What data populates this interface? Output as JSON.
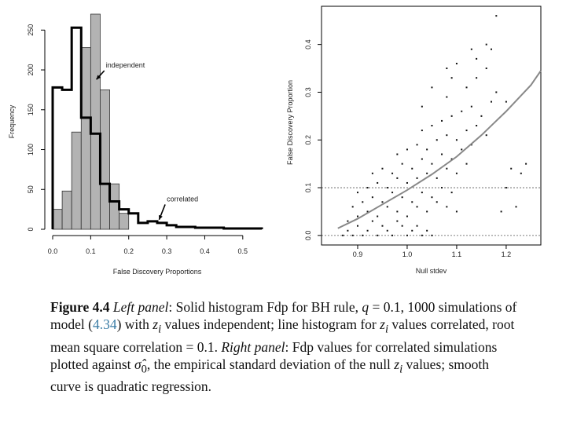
{
  "chart_data": [
    {
      "type": "bar",
      "panel": "left",
      "xlabel": "False Discovery Proportions",
      "ylabel": "Frequency",
      "xlim": [
        0,
        0.55
      ],
      "ylim": [
        0,
        270
      ],
      "xticks": [
        0.0,
        0.1,
        0.2,
        0.3,
        0.4,
        0.5
      ],
      "xtick_labels": [
        "0.0",
        "0.1",
        "0.2",
        "0.3",
        "0.4",
        "0.5"
      ],
      "yticks": [
        0,
        50,
        100,
        150,
        200,
        250
      ],
      "bin_width": 0.025,
      "series": [
        {
          "name": "independent",
          "style": "solid-gray",
          "bin_starts": [
            0.0,
            0.025,
            0.05,
            0.075,
            0.1,
            0.125,
            0.15,
            0.175
          ],
          "values": [
            25,
            48,
            122,
            228,
            270,
            175,
            57,
            20
          ]
        },
        {
          "name": "correlated",
          "style": "thick-outline",
          "bin_starts": [
            0.0,
            0.025,
            0.05,
            0.075,
            0.1,
            0.125,
            0.15,
            0.175,
            0.2,
            0.225,
            0.25,
            0.275,
            0.3,
            0.325,
            0.35,
            0.375,
            0.4,
            0.425,
            0.45,
            0.475,
            0.5,
            0.525
          ],
          "values": [
            178,
            175,
            253,
            140,
            120,
            57,
            35,
            25,
            20,
            8,
            10,
            8,
            5,
            3,
            3,
            2,
            2,
            2,
            1,
            1,
            1,
            1
          ]
        }
      ],
      "annotations": [
        {
          "text": "independent",
          "target_x": 0.115,
          "target_y": 188,
          "text_x": 0.14,
          "text_y": 203
        },
        {
          "text": "correlated",
          "target_x": 0.28,
          "target_y": 12,
          "text_x": 0.3,
          "text_y": 35
        }
      ]
    },
    {
      "type": "scatter",
      "panel": "right",
      "xlabel": "Null stdev",
      "ylabel": "False Discovery Proportion",
      "xlim": [
        0.827,
        1.27
      ],
      "ylim": [
        -0.02,
        0.48
      ],
      "xticks": [
        0.9,
        1.0,
        1.1,
        1.2
      ],
      "xtick_labels": [
        "0.9",
        "1.0",
        "1.1",
        "1.2"
      ],
      "yticks": [
        0.0,
        0.1,
        0.2,
        0.3,
        0.4
      ],
      "ytick_labels": [
        "0.0",
        "0.1",
        "0.2",
        "0.3",
        "0.4"
      ],
      "reference_lines_y": [
        0.0,
        0.1
      ],
      "fit": {
        "label": "quadratic regression",
        "x": [
          0.86,
          0.9,
          0.95,
          1.0,
          1.05,
          1.1,
          1.15,
          1.2,
          1.25,
          1.27
        ],
        "y": [
          0.015,
          0.035,
          0.065,
          0.095,
          0.128,
          0.165,
          0.21,
          0.26,
          0.315,
          0.345
        ]
      },
      "points": [
        [
          0.87,
          0.0
        ],
        [
          0.88,
          0.01
        ],
        [
          0.89,
          0.0
        ],
        [
          0.9,
          0.02
        ],
        [
          0.91,
          0.0
        ],
        [
          0.92,
          0.01
        ],
        [
          0.93,
          0.03
        ],
        [
          0.94,
          0.0
        ],
        [
          0.95,
          0.02
        ],
        [
          0.96,
          0.01
        ],
        [
          0.97,
          0.0
        ],
        [
          0.98,
          0.03
        ],
        [
          0.99,
          0.02
        ],
        [
          1.0,
          0.0
        ],
        [
          1.01,
          0.01
        ],
        [
          1.02,
          0.02
        ],
        [
          1.03,
          0.0
        ],
        [
          1.04,
          0.01
        ],
        [
          1.05,
          0.0
        ],
        [
          0.88,
          0.03
        ],
        [
          0.9,
          0.04
        ],
        [
          0.92,
          0.05
        ],
        [
          0.94,
          0.04
        ],
        [
          0.96,
          0.06
        ],
        [
          0.98,
          0.05
        ],
        [
          1.0,
          0.04
        ],
        [
          1.02,
          0.06
        ],
        [
          1.04,
          0.05
        ],
        [
          1.06,
          0.07
        ],
        [
          1.08,
          0.06
        ],
        [
          1.1,
          0.05
        ],
        [
          0.89,
          0.06
        ],
        [
          0.91,
          0.07
        ],
        [
          0.93,
          0.08
        ],
        [
          0.95,
          0.07
        ],
        [
          0.97,
          0.09
        ],
        [
          0.99,
          0.08
        ],
        [
          1.01,
          0.07
        ],
        [
          1.03,
          0.09
        ],
        [
          1.05,
          0.08
        ],
        [
          1.07,
          0.1
        ],
        [
          1.09,
          0.09
        ],
        [
          0.9,
          0.09
        ],
        [
          0.92,
          0.1
        ],
        [
          0.94,
          0.11
        ],
        [
          0.96,
          0.1
        ],
        [
          0.98,
          0.12
        ],
        [
          1.0,
          0.11
        ],
        [
          1.02,
          0.12
        ],
        [
          1.04,
          0.13
        ],
        [
          1.06,
          0.12
        ],
        [
          1.08,
          0.14
        ],
        [
          1.1,
          0.13
        ],
        [
          1.12,
          0.15
        ],
        [
          0.93,
          0.13
        ],
        [
          0.95,
          0.14
        ],
        [
          0.97,
          0.13
        ],
        [
          0.99,
          0.15
        ],
        [
          1.01,
          0.14
        ],
        [
          1.03,
          0.16
        ],
        [
          1.05,
          0.15
        ],
        [
          1.07,
          0.17
        ],
        [
          1.09,
          0.16
        ],
        [
          1.11,
          0.18
        ],
        [
          1.13,
          0.19
        ],
        [
          0.98,
          0.17
        ],
        [
          1.0,
          0.18
        ],
        [
          1.02,
          0.19
        ],
        [
          1.04,
          0.18
        ],
        [
          1.06,
          0.2
        ],
        [
          1.08,
          0.21
        ],
        [
          1.1,
          0.2
        ],
        [
          1.12,
          0.22
        ],
        [
          1.14,
          0.23
        ],
        [
          1.16,
          0.21
        ],
        [
          1.03,
          0.22
        ],
        [
          1.05,
          0.23
        ],
        [
          1.07,
          0.24
        ],
        [
          1.09,
          0.25
        ],
        [
          1.11,
          0.26
        ],
        [
          1.13,
          0.27
        ],
        [
          1.15,
          0.25
        ],
        [
          1.17,
          0.28
        ],
        [
          1.03,
          0.27
        ],
        [
          1.08,
          0.29
        ],
        [
          1.12,
          0.31
        ],
        [
          1.14,
          0.33
        ],
        [
          1.16,
          0.35
        ],
        [
          1.08,
          0.35
        ],
        [
          1.1,
          0.36
        ],
        [
          1.18,
          0.3
        ],
        [
          1.2,
          0.28
        ],
        [
          1.13,
          0.39
        ],
        [
          1.16,
          0.4
        ],
        [
          1.14,
          0.37
        ],
        [
          1.05,
          0.31
        ],
        [
          1.09,
          0.33
        ],
        [
          1.18,
          0.46
        ],
        [
          1.17,
          0.39
        ],
        [
          1.19,
          0.05
        ],
        [
          1.21,
          0.14
        ],
        [
          1.22,
          0.06
        ],
        [
          1.24,
          0.15
        ],
        [
          1.23,
          0.13
        ],
        [
          1.2,
          0.1
        ]
      ]
    }
  ],
  "caption": {
    "label": "Figure 4.4",
    "left_panel_label": "Left panel",
    "text_1": ": Solid histogram Fdp for BH rule, ",
    "q_var": "q",
    "text_2": " = 0.1, 1000 simulations of model (",
    "eq_ref": "4.34",
    "text_3": ") with ",
    "z_var": "z",
    "z_sub": "i",
    "text_4": " values independent; line histogram for ",
    "text_5": " values correlated, root mean square correlation = 0.1. ",
    "right_panel_label": "Right panel",
    "text_6": ": Fdp values for correlated simulations plotted against ",
    "sigma_var": "σ̂",
    "sigma_sub": "0",
    "text_7": ", the empirical standard deviation of the null ",
    "text_8": " values; smooth curve is quadratic regression."
  }
}
